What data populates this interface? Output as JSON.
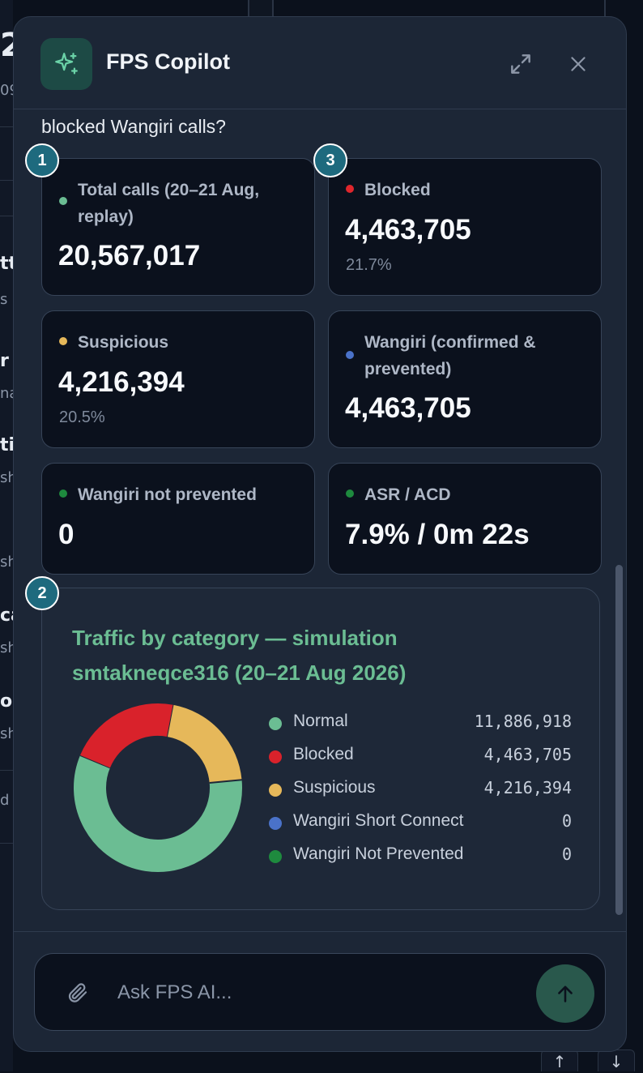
{
  "background": {
    "fragments": [
      "2",
      "09",
      "tt",
      "s n",
      "r",
      "na",
      "ti",
      "sh",
      "sh",
      "ca",
      "sh",
      "or",
      "sh",
      "d"
    ],
    "scroll_up": "↑",
    "scroll_down": "↓"
  },
  "header": {
    "title": "FPS Copilot",
    "logo_icon": "sparkles-icon",
    "expand_icon": "expand-icon",
    "close_icon": "close-icon"
  },
  "message": {
    "intro": "blocked Wangiri calls?"
  },
  "badges": [
    "1",
    "3",
    "2"
  ],
  "stats": [
    {
      "label": "Total calls (20–21 Aug, replay)",
      "value": "20,567,017",
      "pct": "",
      "color": "#6bbd93"
    },
    {
      "label": "Blocked",
      "value": "4,463,705",
      "pct": "21.7%",
      "color": "#e0262c"
    },
    {
      "label": "Suspicious",
      "value": "4,216,394",
      "pct": "20.5%",
      "color": "#e6b85a"
    },
    {
      "label": "Wangiri (confirmed & prevented)",
      "value": "4,463,705",
      "pct": "",
      "color": "#4a72c9"
    },
    {
      "label": "Wangiri not prevented",
      "value": "0",
      "pct": "",
      "color": "#1e8a3e"
    },
    {
      "label": "ASR / ACD",
      "value": "7.9% / 0m 22s",
      "pct": "",
      "color": "#1e8a3e"
    }
  ],
  "chart_data": {
    "type": "pie",
    "title": "Traffic by category — simulation smtakneqce316 (20–21 Aug 2026)",
    "categories": [
      "Normal",
      "Blocked",
      "Suspicious",
      "Wangiri Short Connect",
      "Wangiri Not Prevented"
    ],
    "values": [
      11886918,
      4463705,
      4216394,
      0,
      0
    ],
    "value_labels": [
      "11,886,918",
      "4,463,705",
      "4,216,394",
      "0",
      "0"
    ],
    "colors": [
      "#6bbd93",
      "#d9222b",
      "#e6b85a",
      "#4a72c9",
      "#1e8a3e"
    ],
    "legend": "right",
    "donut": true
  },
  "composer": {
    "placeholder": "Ask FPS AI...",
    "attach_icon": "paperclip-icon",
    "send_icon": "arrow-up-icon"
  }
}
